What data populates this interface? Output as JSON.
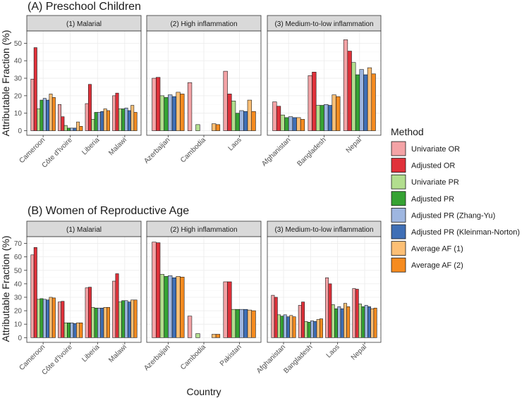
{
  "chart_data": {
    "type": "bar",
    "xlabel": "Country",
    "legend": {
      "title": "Method",
      "position": "right",
      "entries": [
        {
          "name": "Univariate OR",
          "color": "#F4A3A6"
        },
        {
          "name": "Adjusted OR",
          "color": "#E0313A"
        },
        {
          "name": "Univariate PR",
          "color": "#B2DE8E"
        },
        {
          "name": "Adjusted PR",
          "color": "#35A233"
        },
        {
          "name": "Adjusted PR (Zhang-Yu)",
          "color": "#9EB6E0"
        },
        {
          "name": "Adjusted PR (Kleinman-Norton)",
          "color": "#3F6FB6"
        },
        {
          "name": "Average AF (1)",
          "color": "#FCBF75"
        },
        {
          "name": "Average AF (2)",
          "color": "#F68B1F"
        }
      ]
    },
    "rows": [
      {
        "title": "(A) Preschool Children",
        "ylabel": "Attributable Fraction (%)",
        "ylim": [
          -2.6,
          57
        ],
        "yticks": [
          0,
          10,
          20,
          30,
          40,
          50
        ],
        "panels": [
          {
            "strip": "(1) Malarial",
            "categories": [
              "Cameroon",
              "Côte d'Ivoire",
              "Liberia",
              "Malawi"
            ],
            "values": [
              [
                29.5,
                47.5,
                12.5,
                17.5,
                18.5,
                17.5,
                21.0,
                19.0
              ],
              [
                15.0,
                8.0,
                3.0,
                1.5,
                1.5,
                1.5,
                5.0,
                2.5
              ],
              [
                15.5,
                26.5,
                6.5,
                10.5,
                10.5,
                11.0,
                12.5,
                11.5
              ],
              [
                20.0,
                21.5,
                12.5,
                12.5,
                13.0,
                11.5,
                14.5,
                10.5
              ]
            ]
          },
          {
            "strip": "(2) High inflammation",
            "categories": [
              "Azerbaijan",
              "Cambodia",
              "Laos"
            ],
            "values": [
              [
                30.0,
                30.5,
                20.0,
                19.0,
                20.5,
                19.5,
                22.0,
                21.0
              ],
              [
                27.5,
                0,
                3.5,
                0,
                0,
                0,
                4.0,
                3.5
              ],
              [
                34.0,
                21.0,
                17.0,
                10.0,
                11.5,
                11.0,
                17.5,
                11.0
              ]
            ]
          },
          {
            "strip": "(3) Medium-to-low inflammation",
            "categories": [
              "Afghanistan",
              "Bangladesh",
              "Nepal"
            ],
            "values": [
              [
                16.5,
                14.0,
                9.0,
                7.5,
                8.0,
                7.5,
                7.5,
                6.5
              ],
              [
                31.5,
                33.5,
                14.5,
                14.5,
                15.0,
                14.5,
                20.5,
                19.5
              ],
              [
                52.0,
                45.5,
                39.0,
                32.0,
                35.0,
                32.0,
                36.0,
                32.5
              ]
            ]
          }
        ]
      },
      {
        "title": "(B) Women of Reproductive Age",
        "ylabel": "Attributable Fraction (%)",
        "ylim": [
          -3.5,
          75
        ],
        "yticks": [
          0,
          10,
          20,
          30,
          40,
          50,
          60,
          70
        ],
        "panels": [
          {
            "strip": "(1) Malarial",
            "categories": [
              "Cameroon",
              "Côte d'Ivoire",
              "Liberia",
              "Malawi"
            ],
            "values": [
              [
                61.5,
                67.0,
                28.5,
                29.0,
                28.5,
                28.0,
                30.0,
                29.5
              ],
              [
                26.5,
                27.0,
                11.0,
                11.0,
                11.0,
                10.5,
                11.0,
                11.0
              ],
              [
                37.0,
                37.5,
                22.5,
                22.0,
                22.0,
                22.0,
                22.5,
                22.5
              ],
              [
                42.0,
                47.5,
                26.5,
                27.5,
                27.5,
                26.5,
                28.0,
                28.0
              ]
            ]
          },
          {
            "strip": "(2) High inflammation",
            "categories": [
              "Azerbaijan",
              "Cambodia",
              "Pakistan"
            ],
            "values": [
              [
                71.0,
                70.5,
                47.0,
                45.5,
                46.0,
                44.5,
                45.5,
                45.0
              ],
              [
                16.0,
                0,
                3.0,
                0,
                0,
                0,
                2.5,
                2.5
              ],
              [
                41.5,
                41.5,
                21.0,
                21.0,
                21.0,
                21.0,
                20.5,
                20.0
              ]
            ]
          },
          {
            "strip": "(3) Medium-to-low inflammation",
            "categories": [
              "Afghanistan",
              "Bangladesh",
              "Laos",
              "Nepal"
            ],
            "values": [
              [
                31.5,
                30.0,
                17.0,
                16.0,
                17.0,
                15.5,
                16.5,
                15.5
              ],
              [
                24.0,
                26.5,
                12.0,
                11.5,
                12.5,
                12.0,
                13.5,
                14.0
              ],
              [
                44.5,
                40.0,
                24.5,
                21.5,
                23.0,
                21.5,
                25.5,
                23.0
              ],
              [
                36.5,
                36.0,
                25.0,
                23.0,
                24.0,
                23.0,
                21.5,
                22.0
              ]
            ]
          }
        ]
      }
    ]
  }
}
